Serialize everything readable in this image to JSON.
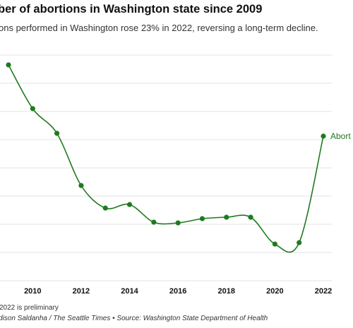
{
  "header": {
    "title": "ber of abortions in Washington state since 2009",
    "subtitle": "ons performed in Washington rose 23% in 2022, reversing a long-term decline."
  },
  "footer": {
    "note": "2022 is preliminary",
    "credit": "dison Saldanha / The Seattle Times • Source: Washington State Department of Health"
  },
  "colors": {
    "line": "#1f7a1f",
    "grid": "#e3e3e3",
    "text": "#111111"
  },
  "chart_data": {
    "type": "line",
    "title": "ber of abortions in Washington state since 2009",
    "subtitle": "ons performed in Washington rose 23% in 2022, reversing a long-term decline.",
    "x": [
      2009,
      2010,
      2011,
      2012,
      2013,
      2014,
      2015,
      2016,
      2017,
      2018,
      2019,
      2020,
      2021,
      2022
    ],
    "x_tick_labels": [
      "2010",
      "2012",
      "2014",
      "2016",
      "2018",
      "2020",
      "2022"
    ],
    "x_ticks": [
      2010,
      2012,
      2014,
      2016,
      2018,
      2020,
      2022
    ],
    "grid_y": [
      78,
      118,
      158,
      198,
      238,
      278,
      318,
      358,
      398
    ],
    "series": [
      {
        "name": "Abort",
        "values": [
          92,
          154,
          189,
          263,
          295,
          290,
          315,
          316,
          310,
          308,
          308,
          346,
          344,
          193
        ]
      }
    ],
    "y_axis_inverted_pixels": true,
    "xlim": [
      2008.8,
      2022.2
    ],
    "grid": true,
    "legend": "line-end label"
  }
}
